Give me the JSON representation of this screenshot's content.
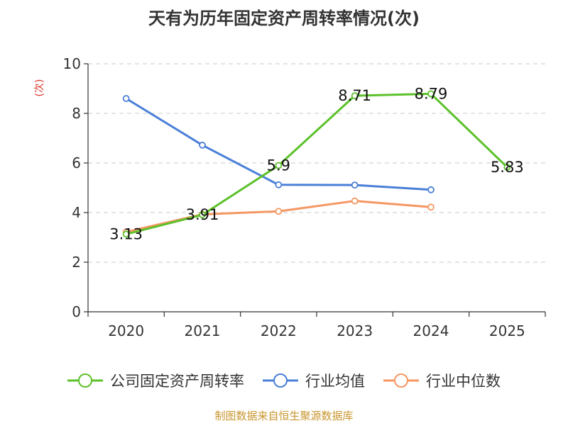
{
  "chart_data": {
    "type": "line",
    "title": "天有为历年固定资产周转率情况(次)",
    "ylabel": "(次)",
    "categories": [
      "2020",
      "2021",
      "2022",
      "2023",
      "2024",
      "2025"
    ],
    "ylim": [
      0,
      10
    ],
    "yticks": [
      0,
      2,
      4,
      6,
      8,
      10
    ],
    "grid": true,
    "legend_position": "bottom",
    "series": [
      {
        "name": "公司固定资产周转率",
        "color": "#5cc12a",
        "values": [
          3.13,
          3.91,
          5.9,
          8.71,
          8.79,
          5.83
        ],
        "labels": [
          "3.13",
          "3.91",
          "5.9",
          "8.71",
          "8.79",
          "5.83"
        ]
      },
      {
        "name": "行业均值",
        "color": "#4a7fd8",
        "values": [
          8.6,
          6.72,
          5.12,
          5.11,
          4.92,
          null
        ],
        "labels": []
      },
      {
        "name": "行业中位数",
        "color": "#f59762",
        "values": [
          3.22,
          3.93,
          4.05,
          4.47,
          4.22,
          null
        ],
        "labels": []
      }
    ],
    "source": "制图数据来自恒生聚源数据库",
    "source_color": "#c8962e",
    "ylabel_color": "#d9332a"
  }
}
